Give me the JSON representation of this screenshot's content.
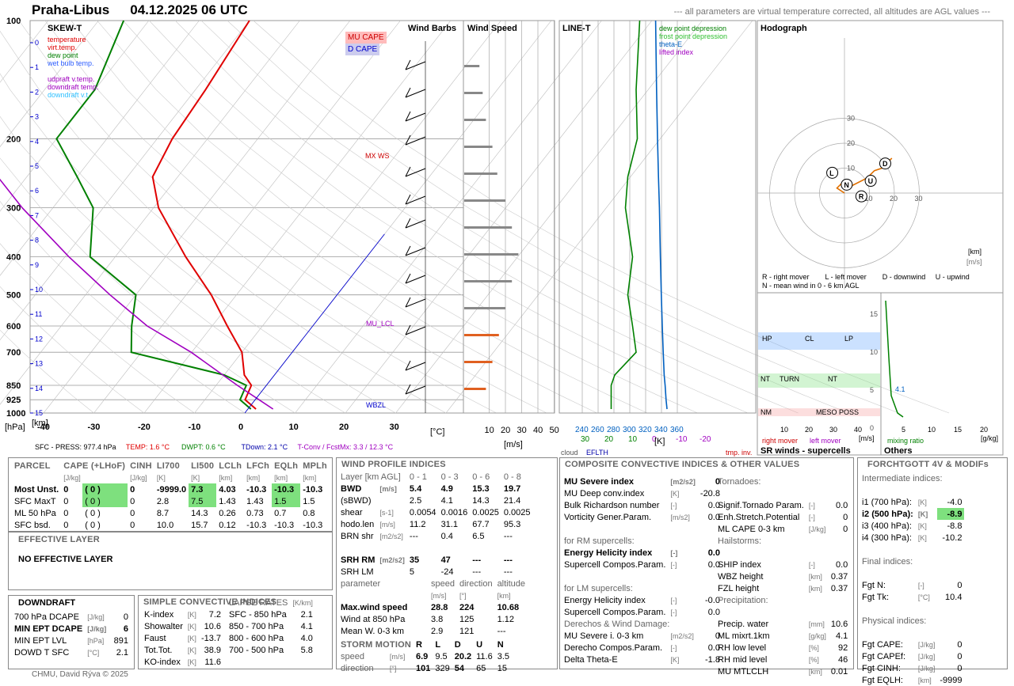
{
  "header": {
    "station": "Praha-Libus",
    "datetime": "04.12.2025 06 UTC",
    "note": "--- all parameters are virtual temperature corrected, all altitudes are AGL values ---"
  },
  "skewt": {
    "title": "SKEW-T",
    "legend": [
      "temperature",
      "virt.temp.",
      "dew point",
      "wet bulb temp.",
      "udpraft v.temp.",
      "downdraft temp.",
      "downdraft v.t."
    ],
    "legend_colors": [
      "#e00000",
      "#e00000",
      "#008000",
      "#3060ff",
      "#a000c0",
      "#a000c0",
      "#30c0ff"
    ],
    "mucape": "MU CAPE",
    "dcape": "D CAPE",
    "mxws": "MX WS",
    "mulcl": "MU_LCL",
    "wbzl": "WBZL",
    "p_ticks": [
      "100",
      "200",
      "300",
      "400",
      "500",
      "600",
      "700",
      "850",
      "925",
      "1000"
    ],
    "km_ticks": [
      "15",
      "14",
      "13",
      "12",
      "11",
      "10",
      "9",
      "8",
      "7",
      "6",
      "5",
      "4",
      "3",
      "2",
      "1",
      "0"
    ],
    "t_ticks": [
      "-40",
      "-30",
      "-20",
      "-10",
      "0",
      "10",
      "20",
      "30"
    ],
    "t_unit": "[°C]",
    "p_unit": "[hPa]",
    "km_unit": "[km]",
    "footer": {
      "sfc": "SFC - PRESS: 977.4 hPa",
      "temp": "TEMP: 1.6 °C",
      "dwpt": "DWPT: 0.6 °C",
      "tdown": "TDown: 2.1 °C",
      "tconv": "T-Conv / FcstMx: 3.3 / 12.3 °C"
    }
  },
  "windbarbs": {
    "title": "Wind Barbs"
  },
  "windspeed": {
    "title": "Wind Speed",
    "ticks": [
      "10",
      "20",
      "30",
      "40",
      "50"
    ],
    "unit": "[m/s]"
  },
  "linet": {
    "title": "LINE-T",
    "legend": [
      "dew point depression",
      "frost point depression",
      "theta-E",
      "lifted index"
    ],
    "ticks_k": [
      "240",
      "260",
      "280",
      "300",
      "320",
      "340",
      "360"
    ],
    "ticks_c": [
      "30",
      "20",
      "10",
      "0",
      "-10",
      "-20"
    ],
    "unit": "[K]",
    "cloud": "cloud",
    "eflth": "EFLTH",
    "tmp": "tmp. inv."
  },
  "hodograph": {
    "title": "Hodograph",
    "rings": [
      "10",
      "20",
      "30"
    ],
    "km": "[km]",
    "ms": "[m/s]",
    "legend1": "R - right mover        L - left mover        D - downwind     U - upwind",
    "legend2": "N - mean wind in 0 - 6 km AGL"
  },
  "srwinds": {
    "title": "SR winds - supercells",
    "hp": "HP",
    "cl": "CL",
    "lp": "LP",
    "nt": "NT",
    "turn": "TURN",
    "nm": "NM",
    "meso": "MESO POSS",
    "rm": "right mover",
    "lm": "left mover",
    "ticks": [
      "10",
      "20",
      "30",
      "40"
    ],
    "unit": "[m/s]",
    "yticks": [
      "15",
      "10",
      "5",
      "0"
    ]
  },
  "others": {
    "title": "Others",
    "value": "4.1",
    "ticks": [
      "5",
      "10",
      "15",
      "20"
    ],
    "unit": "[g/kg]",
    "label": "mixing ratio"
  },
  "parcel": {
    "header": [
      "PARCEL",
      "CAPE (+LHoF)",
      "CINH",
      "LI700",
      "LI500",
      "LCLh",
      "LFCh",
      "EQLh",
      "MPLh"
    ],
    "units": [
      "",
      "[J/kg]",
      "[J/kg]",
      "[K]",
      "[K]",
      "[km]",
      "[km]",
      "[km]",
      "[km]"
    ],
    "rows": [
      [
        "Most Unst.",
        "0",
        "( 0 )",
        "0",
        "-9999.0",
        "7.3",
        "4.03",
        "-10.3",
        "-10.3",
        "-10.3"
      ],
      [
        "SFC MaxT",
        "0",
        "( 0 )",
        "0",
        "2.8",
        "7.5",
        "1.43",
        "1.43",
        "1.5",
        "1.5"
      ],
      [
        "ML 50 hPa",
        "0",
        "( 0 )",
        "0",
        "8.7",
        "14.3",
        "0.26",
        "0.73",
        "0.7",
        "0.8"
      ],
      [
        "SFC bsd.",
        "0",
        "( 0 )",
        "0",
        "10.0",
        "15.7",
        "0.12",
        "-10.3",
        "-10.3",
        "-10.3"
      ]
    ]
  },
  "effective": {
    "title": "EFFECTIVE LAYER",
    "text": "NO EFFECTIVE LAYER"
  },
  "downdraft": {
    "title": "DOWNDRAFT",
    "rows": [
      [
        "700 hPa DCAPE",
        "[J/kg]",
        "0"
      ],
      [
        "MIN EPT DCAPE",
        "[J/kg]",
        "6"
      ],
      [
        "MIN EPT LVL",
        "[hPa]",
        "891"
      ],
      [
        "DOWD T SFC",
        "[°C]",
        "2.1"
      ]
    ]
  },
  "simple": {
    "title": "SIMPLE CONVECTIVE INDICES",
    "rows": [
      [
        "K-index",
        "[K]",
        "7.2"
      ],
      [
        "Showalter",
        "[K]",
        "10.6"
      ],
      [
        "Faust",
        "[K]",
        "-13.7"
      ],
      [
        "Tot.Tot.",
        "[K]",
        "38.9"
      ],
      [
        "KO-index",
        "[K]",
        "11.6"
      ]
    ],
    "lapse_title": "LAPSE RATES",
    "lapse_unit": "[K/km]",
    "lapse": [
      [
        "SFC - 850 hPa",
        "2.1"
      ],
      [
        "850 - 700 hPa",
        "4.1"
      ],
      [
        "800 - 600 hPa",
        "4.0"
      ],
      [
        "700 - 500 hPa",
        "5.8"
      ]
    ]
  },
  "windprofile": {
    "title": "WIND PROFILE INDICES",
    "layer": "Layer [km AGL]",
    "cols": [
      "0 - 1",
      "0 - 3",
      "0 - 6",
      "0 - 8"
    ],
    "rows": [
      [
        "BWD",
        "[m/s]",
        "5.4",
        "4.9",
        "15.3",
        "19.7"
      ],
      [
        "(sBWD)",
        "",
        "2.5",
        "4.1",
        "14.3",
        "21.4"
      ],
      [
        "shear",
        "[s-1]",
        "0.0054",
        "0.0016",
        "0.0025",
        "0.0025"
      ],
      [
        "hodo.len",
        "[m/s]",
        "11.2",
        "31.1",
        "67.7",
        "95.3"
      ],
      [
        "BRN shr",
        "[m2/s2]",
        "---",
        "0.4",
        "6.5",
        "---"
      ]
    ],
    "srh": [
      [
        "SRH RM",
        "[m2/s2]",
        "35",
        "47",
        "---",
        "---"
      ],
      [
        "SRH LM",
        "",
        "5",
        "-24",
        "---",
        "---"
      ]
    ],
    "param_head": [
      "parameter",
      "speed",
      "direction",
      "altitude"
    ],
    "param_units": [
      "",
      "[m/s]",
      "[°]",
      "[km]"
    ],
    "params": [
      [
        "Max.wind speed",
        "28.8",
        "224",
        "10.68"
      ],
      [
        "Wind at 850 hPa",
        "3.8",
        "125",
        "1.12"
      ],
      [
        "Mean W. 0-3 km",
        "2.9",
        "121",
        "---"
      ]
    ],
    "storm_head": [
      "STORM MOTION",
      "R",
      "L",
      "D",
      "U",
      "N"
    ],
    "storm": [
      [
        "speed",
        "[m/s]",
        "6.9",
        "9.5",
        "20.2",
        "11.6",
        "3.5"
      ],
      [
        "direction",
        "[°]",
        "101",
        "329",
        "54",
        "65",
        "15"
      ]
    ]
  },
  "composite": {
    "title": "COMPOSITE CONVECTIVE INDICES & OTHER VALUES",
    "left": [
      [
        "MU Severe index",
        "[m2/s2]",
        "0"
      ],
      [
        "MU Deep conv.index",
        "[K]",
        "-20.8"
      ],
      [
        "Bulk Richardson number",
        "[-]",
        "0.0"
      ],
      [
        "Vorticity Gener.Param.",
        "[m/s2]",
        "0.0"
      ]
    ],
    "rm_title": "for RM supercells:",
    "rm": [
      [
        "Energy Helicity index",
        "[-]",
        "0.0"
      ],
      [
        "Supercell Compos.Param.",
        "[-]",
        "0.0"
      ]
    ],
    "lm_title": "for LM supercells:",
    "lm": [
      [
        "Energy Helicity index",
        "[-]",
        "-0.0"
      ],
      [
        "Supercell Compos.Param.",
        "[-]",
        "0.0"
      ]
    ],
    "der_title": "Derechos & Wind Damage:",
    "der": [
      [
        "MU Severe i. 0-3 km",
        "[m2/s2]",
        "0"
      ],
      [
        "Derecho Compos.Param.",
        "[-]",
        "0.0"
      ],
      [
        "Delta Theta-E",
        "[K]",
        "-1.8"
      ]
    ],
    "tor_title": "Tornadoes:",
    "tor": [
      [
        "Signif.Tornado Param.",
        "[-]",
        "0.0"
      ],
      [
        "Enh.Stretch.Potential",
        "[-]",
        "0"
      ],
      [
        "ML CAPE 0-3 km",
        "[J/kg]",
        "0"
      ]
    ],
    "hail_title": "Hailstorms:",
    "hail": [
      [
        "SHIP index",
        "[-]",
        "0.0"
      ],
      [
        "WBZ height",
        "[km]",
        "0.37"
      ],
      [
        "FZL height",
        "[km]",
        "0.37"
      ]
    ],
    "prec_title": "Precipitation:",
    "prec": [
      [
        "Precip. water",
        "[mm]",
        "10.6"
      ],
      [
        "ML mixrt.1km",
        "[g/kg]",
        "4.1"
      ],
      [
        "RH low level",
        "[%]",
        "92"
      ],
      [
        "RH mid level",
        "[%]",
        "46"
      ],
      [
        "MU MTLCLH",
        "[km]",
        "0.01"
      ]
    ]
  },
  "forchtgott": {
    "title": "FORCHTGOTT 4V & MODIFs",
    "inter_title": "Intermediate indices:",
    "inter": [
      [
        "i1 (700 hPa):",
        "[K]",
        "-4.0"
      ],
      [
        "i2 (500 hPa):",
        "[K]",
        "-8.9"
      ],
      [
        "i3 (400 hPa):",
        "[K]",
        "-8.8"
      ],
      [
        "i4 (300 hPa):",
        "[K]",
        "-10.2"
      ]
    ],
    "final_title": "Final indices:",
    "final": [
      [
        "Fgt N:",
        "[-]",
        "0"
      ],
      [
        "Fgt Tk:",
        "[°C]",
        "10.4"
      ]
    ],
    "phys_title": "Physical indices:",
    "phys": [
      [
        "Fgt CAPE:",
        "[J/kg]",
        "0"
      ],
      [
        "Fgt CAPEf:",
        "[J/kg]",
        "0"
      ],
      [
        "Fgt CINH:",
        "[J/kg]",
        "0"
      ],
      [
        "Fgt EQLH:",
        "[km]",
        "-9999"
      ]
    ]
  },
  "footer": "CHMU, David Rýva © 2025",
  "chart_data": {
    "type": "line",
    "title": "SKEW-T",
    "pressure_hpa": [
      977,
      925,
      850,
      800,
      700,
      600,
      500,
      400,
      300,
      250,
      200,
      150,
      100
    ],
    "temperature_c": [
      1.6,
      -2,
      -3,
      -6,
      -10,
      -17,
      -25,
      -36,
      -49,
      -55,
      -57,
      -58,
      -60
    ],
    "dewpoint_c": [
      0.6,
      -3,
      -4,
      -10,
      -32,
      -36,
      -40,
      -55,
      -62,
      -70,
      -80,
      -80,
      -85
    ],
    "hodograph_points_ms": [
      [
        0,
        0
      ],
      [
        -3,
        2
      ],
      [
        -1,
        4
      ],
      [
        3,
        3
      ],
      [
        9,
        6
      ],
      [
        12,
        9
      ],
      [
        15,
        10
      ],
      [
        19,
        14
      ]
    ],
    "wind_speed_ms": [
      4,
      6,
      8,
      12,
      15,
      20,
      24,
      28,
      24,
      20,
      16,
      12,
      8
    ],
    "storm_motion": {
      "R": [
        6.9,
        101
      ],
      "L": [
        9.5,
        329
      ],
      "D": [
        20.2,
        54
      ],
      "U": [
        11.6,
        65
      ],
      "N": [
        3.5,
        15
      ]
    }
  }
}
